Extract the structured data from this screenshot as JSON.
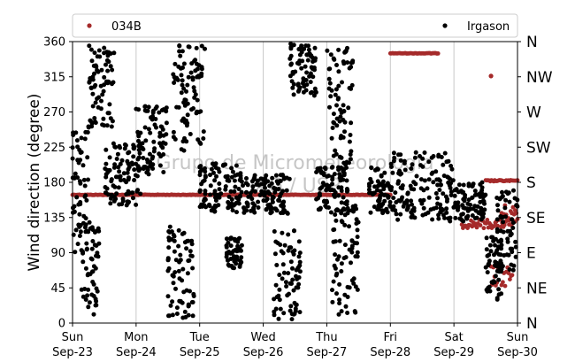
{
  "chart_data": {
    "type": "scatter",
    "ylabel": "Wind direction (degree)",
    "ylim": [
      0,
      360
    ],
    "yticks": [
      0,
      45,
      90,
      135,
      180,
      225,
      270,
      315,
      360
    ],
    "compass_labels": [
      "N",
      "NE",
      "E",
      "SE",
      "S",
      "SW",
      "W",
      "NW",
      "N"
    ],
    "xlim": [
      "2023-09-23",
      "2023-09-30"
    ],
    "xticks": [
      {
        "day": "Sun",
        "date": "Sep-23"
      },
      {
        "day": "Mon",
        "date": "Sep-24"
      },
      {
        "day": "Tue",
        "date": "Sep-25"
      },
      {
        "day": "Wed",
        "date": "Sep-26"
      },
      {
        "day": "Thu",
        "date": "Sep-27"
      },
      {
        "day": "Fri",
        "date": "Sep-28"
      },
      {
        "day": "Sat",
        "date": "Sep-29"
      },
      {
        "day": "Sun",
        "date": "Sep-30"
      }
    ],
    "grid": "vertical",
    "legend_position": "top",
    "watermark": [
      "Grupo de Micrometeorologia",
      "IAG / USP"
    ],
    "series": [
      {
        "name": "034B",
        "color": "#a52a2a",
        "segments": [
          {
            "x": [
              "2023-09-23T00:00",
              "2023-09-28T00:00"
            ],
            "y": 164
          },
          {
            "x": [
              "2023-09-28T00:00",
              "2023-09-28T18:00"
            ],
            "y": 345
          },
          {
            "x": [
              "2023-09-29T03:00",
              "2023-09-29T23:00"
            ],
            "y": 127
          },
          {
            "x": [
              "2023-09-29T12:00",
              "2023-09-30T00:00"
            ],
            "y": 182
          },
          {
            "x": [
              "2023-09-29T14:00",
              "2023-09-29T22:00"
            ],
            "y": 60
          },
          {
            "x": [
              "2023-09-29T18:00",
              "2023-09-30T00:00"
            ],
            "y": 140
          }
        ],
        "points": [
          {
            "x": "2023-09-29T14:00",
            "y": 316
          }
        ]
      },
      {
        "name": "Irgason",
        "color": "#000000",
        "clusters": [
          {
            "x": [
              "2023-09-23T00:00",
              "2023-09-23T06:00"
            ],
            "y": [
              90,
              250
            ]
          },
          {
            "x": [
              "2023-09-23T03:00",
              "2023-09-23T10:00"
            ],
            "y": [
              10,
              130
            ]
          },
          {
            "x": [
              "2023-09-23T06:00",
              "2023-09-23T16:00"
            ],
            "y": [
              250,
              358
            ]
          },
          {
            "x": [
              "2023-09-23T12:00",
              "2023-09-24T02:00"
            ],
            "y": [
              150,
              230
            ]
          },
          {
            "x": [
              "2023-09-24T00:00",
              "2023-09-24T12:00"
            ],
            "y": [
              190,
              280
            ]
          },
          {
            "x": [
              "2023-09-24T12:00",
              "2023-09-24T22:00"
            ],
            "y": [
              5,
              125
            ]
          },
          {
            "x": [
              "2023-09-24T14:00",
              "2023-09-25T02:00"
            ],
            "y": [
              220,
              355
            ]
          },
          {
            "x": [
              "2023-09-25T00:00",
              "2023-09-25T16:00"
            ],
            "y": [
              140,
              205
            ]
          },
          {
            "x": [
              "2023-09-25T10:00",
              "2023-09-25T16:00"
            ],
            "y": [
              70,
              110
            ]
          },
          {
            "x": [
              "2023-09-25T16:00",
              "2023-09-26T10:00"
            ],
            "y": [
              140,
              190
            ]
          },
          {
            "x": [
              "2023-09-26T04:00",
              "2023-09-26T14:00"
            ],
            "y": [
              5,
              120
            ]
          },
          {
            "x": [
              "2023-09-26T10:00",
              "2023-09-26T20:00"
            ],
            "y": [
              290,
              358
            ]
          },
          {
            "x": [
              "2023-09-26T20:00",
              "2023-09-27T08:00"
            ],
            "y": [
              140,
              200
            ]
          },
          {
            "x": [
              "2023-09-27T00:00",
              "2023-09-27T10:00"
            ],
            "y": [
              200,
              355
            ]
          },
          {
            "x": [
              "2023-09-27T02:00",
              "2023-09-27T12:00"
            ],
            "y": [
              10,
              150
            ]
          },
          {
            "x": [
              "2023-09-27T16:00",
              "2023-09-28T00:00"
            ],
            "y": [
              140,
              200
            ]
          },
          {
            "x": [
              "2023-09-28T00:00",
              "2023-09-29T00:00"
            ],
            "y": [
              130,
              220
            ]
          },
          {
            "x": [
              "2023-09-29T00:00",
              "2023-09-29T12:00"
            ],
            "y": [
              130,
              180
            ]
          },
          {
            "x": [
              "2023-09-29T12:00",
              "2023-09-29T18:00"
            ],
            "y": [
              30,
              110
            ]
          },
          {
            "x": [
              "2023-09-29T16:00",
              "2023-09-30T00:00"
            ],
            "y": [
              60,
              170
            ]
          }
        ]
      }
    ]
  }
}
